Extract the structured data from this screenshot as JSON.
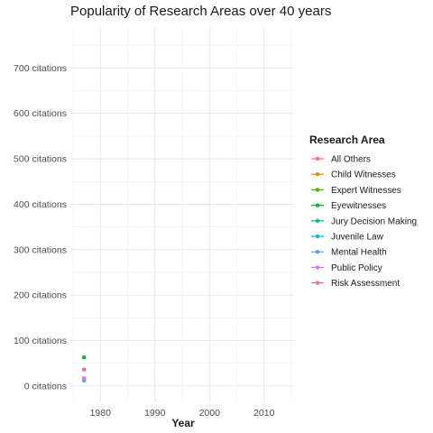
{
  "chart_data": {
    "type": "line",
    "title": "Popularity of Research Areas over 40 years",
    "xlabel": "Year",
    "ylabel": "",
    "xlim": [
      1974.5,
      2015.5
    ],
    "ylim": [
      -36,
      790
    ],
    "x_ticks": [
      1980,
      1990,
      2000,
      2010
    ],
    "y_ticks": [
      0,
      100,
      200,
      300,
      400,
      500,
      600,
      700
    ],
    "y_tick_labels": [
      "0 citations",
      "100 citations",
      "200 citations",
      "300 citations",
      "400 citations",
      "500 citations",
      "600 citations",
      "700 citations"
    ],
    "grid": true,
    "legend": {
      "title": "Research Area",
      "placement": "right"
    },
    "x": [
      1977
    ],
    "series": [
      {
        "name": "All Others",
        "color": "#F8766D",
        "values": [
          15
        ]
      },
      {
        "name": "Child Witnesses",
        "color": "#C49A00",
        "values": [
          13
        ]
      },
      {
        "name": "Expert Witnesses",
        "color": "#53B400",
        "values": [
          12
        ]
      },
      {
        "name": "Eyewitnesses",
        "color": "#00B938",
        "values": [
          63
        ]
      },
      {
        "name": "Jury Decision Making",
        "color": "#00C094",
        "values": [
          14
        ]
      },
      {
        "name": "Juvenile Law",
        "color": "#00B6EB",
        "values": [
          16
        ]
      },
      {
        "name": "Mental Health",
        "color": "#619CFF",
        "values": [
          12
        ]
      },
      {
        "name": "Public Policy",
        "color": "#C77CFF",
        "values": [
          17
        ]
      },
      {
        "name": "Risk Assessment",
        "color": "#FF67A4",
        "values": [
          36
        ]
      }
    ]
  }
}
